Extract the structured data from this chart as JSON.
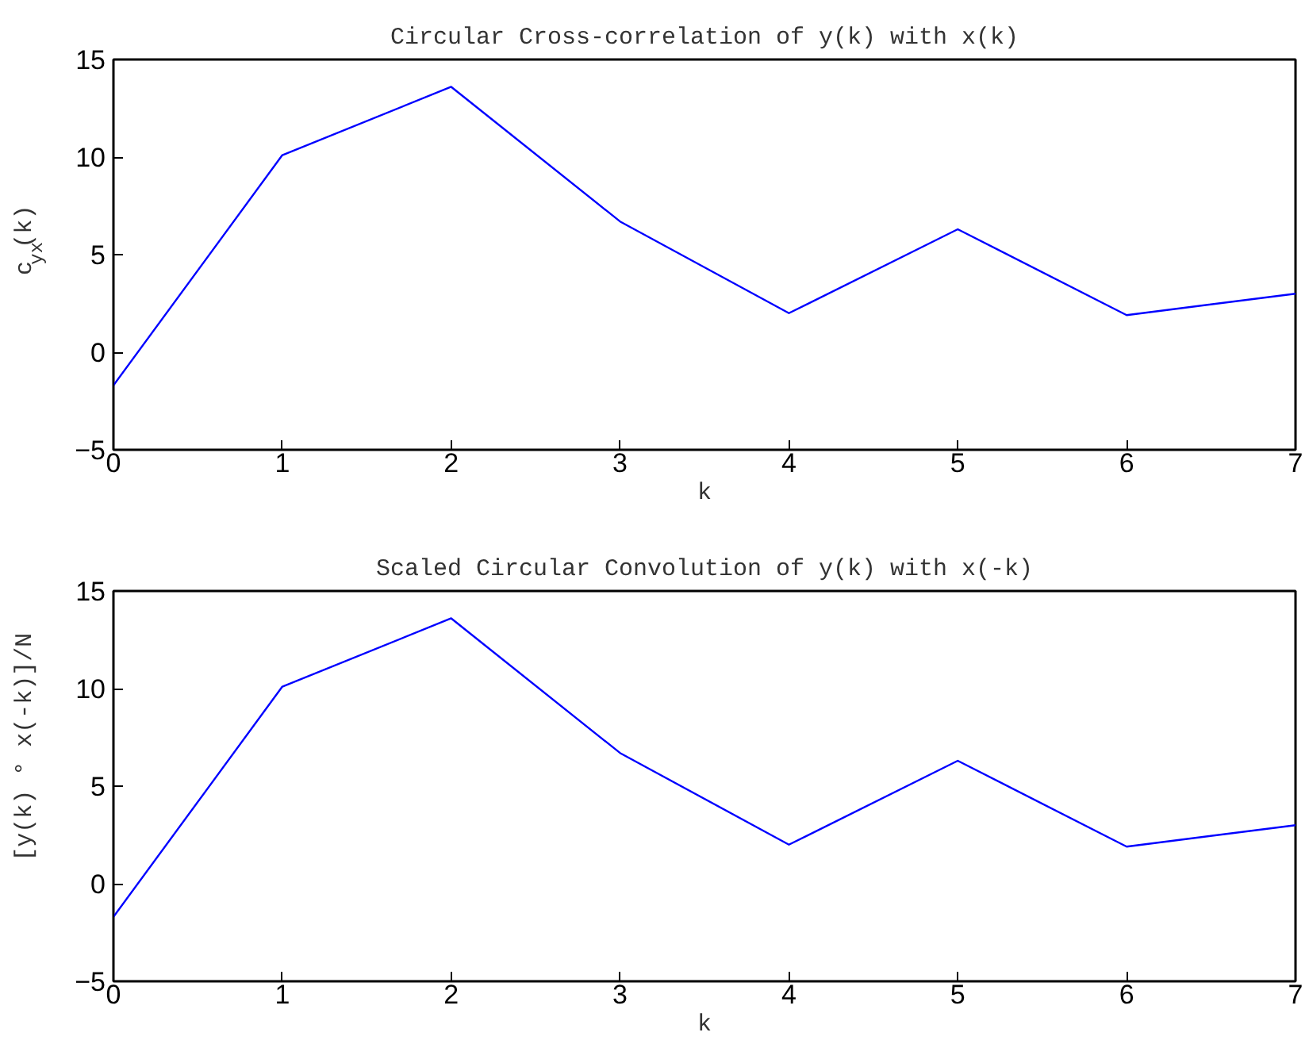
{
  "chart_data": [
    {
      "type": "line",
      "title": "Circular Cross-correlation of y(k) with x(k)",
      "xlabel": "k",
      "ylabel": "c$_{yx}$(k)",
      "x": [
        0,
        1,
        2,
        3,
        4,
        5,
        6,
        7
      ],
      "series": [
        {
          "color": "#0000ff",
          "values": [
            -1.7,
            10.1,
            13.6,
            6.7,
            2.0,
            6.3,
            1.9,
            3.0
          ]
        }
      ],
      "xlim": [
        0,
        7
      ],
      "xticks": [
        0,
        1,
        2,
        3,
        4,
        5,
        6,
        7
      ],
      "ylim": [
        -5,
        15
      ],
      "yticks": [
        {
          "value": -5,
          "label": "−5"
        },
        0,
        5,
        10,
        15
      ],
      "grid": false
    },
    {
      "type": "line",
      "title": "Scaled Circular Convolution of y(k) with x(-k)",
      "xlabel": "k",
      "ylabel": "[y(k) ° x(-k)]/N",
      "x": [
        0,
        1,
        2,
        3,
        4,
        5,
        6,
        7
      ],
      "series": [
        {
          "color": "#0000ff",
          "values": [
            -1.7,
            10.1,
            13.6,
            6.7,
            2.0,
            6.3,
            1.9,
            3.0
          ]
        }
      ],
      "xlim": [
        0,
        7
      ],
      "xticks": [
        0,
        1,
        2,
        3,
        4,
        5,
        6,
        7
      ],
      "ylim": [
        -5,
        15
      ],
      "yticks": [
        {
          "value": -5,
          "label": "−5"
        },
        0,
        5,
        10,
        15
      ],
      "grid": false
    }
  ]
}
